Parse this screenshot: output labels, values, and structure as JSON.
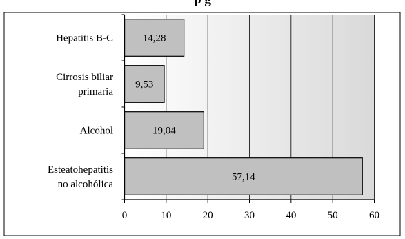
{
  "chart_data": {
    "type": "bar",
    "orientation": "horizontal",
    "title_partial": "p                                                    g",
    "categories": [
      [
        "Hepatitis B-C"
      ],
      [
        "Cirrosis biliar",
        "primaria"
      ],
      [
        "Alcohol"
      ],
      [
        "Esteatohepatitis",
        "no alcohólica"
      ]
    ],
    "values": [
      14.28,
      9.53,
      19.04,
      57.14
    ],
    "value_labels": [
      "14,28",
      "9,53",
      "19,04",
      "57,14"
    ],
    "xlim": [
      0,
      60
    ],
    "xticks": [
      0,
      10,
      20,
      30,
      40,
      50,
      60
    ],
    "xtick_labels": [
      "0",
      "10",
      "20",
      "30",
      "40",
      "50",
      "60"
    ],
    "grid": "vertical",
    "bar_color": "#c0c0c0",
    "plot_background": "gradient white to gray (right)"
  }
}
